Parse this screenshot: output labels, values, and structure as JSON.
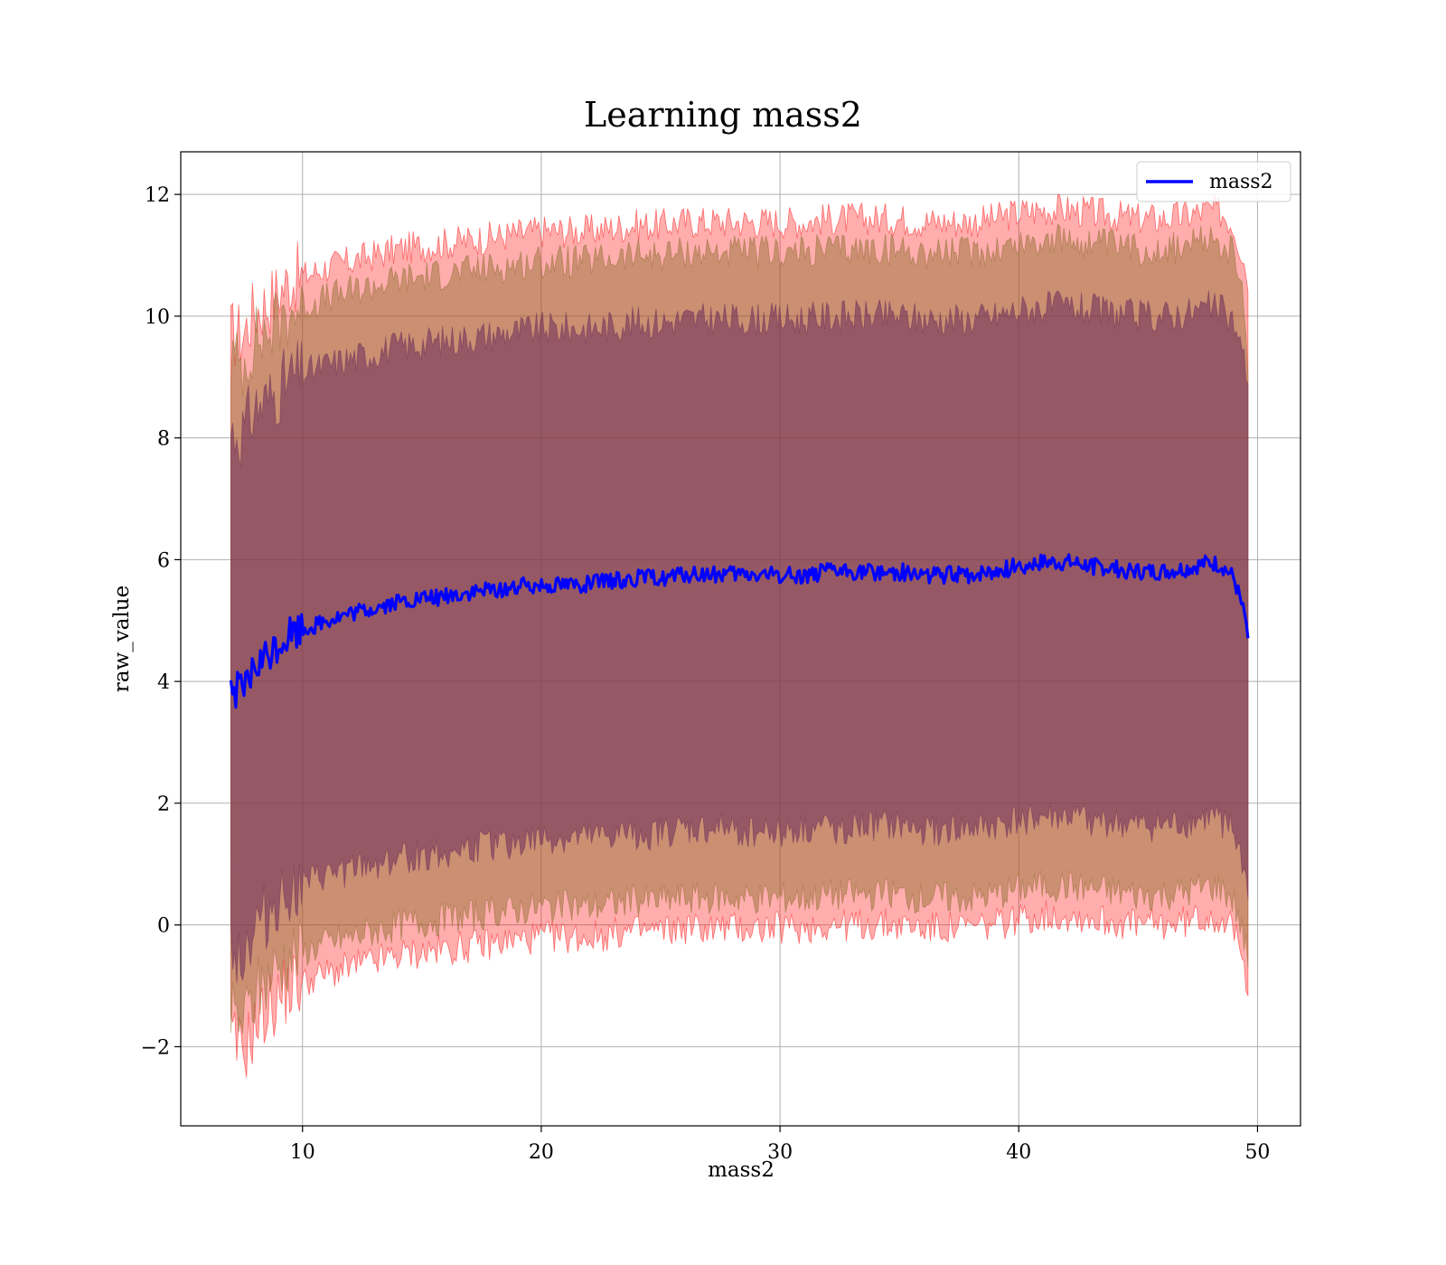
{
  "chart_data": {
    "type": "line",
    "title": "Learning mass2",
    "xlabel": "mass2",
    "ylabel": "raw_value",
    "xlim": [
      4.9,
      51.8
    ],
    "ylim": [
      -3.3,
      12.7
    ],
    "xticks": [
      10,
      20,
      30,
      40,
      50
    ],
    "yticks": [
      -2,
      0,
      2,
      4,
      6,
      8,
      10,
      12
    ],
    "xtick_labels": [
      "10",
      "20",
      "30",
      "40",
      "50"
    ],
    "ytick_labels": [
      "−2",
      "0",
      "2",
      "4",
      "6",
      "8",
      "10",
      "12"
    ],
    "grid": true,
    "legend": {
      "position": "upper-right",
      "entries": [
        "mass2"
      ]
    },
    "colors": {
      "line": "#0000ff",
      "outer_band": "#ff0000",
      "middle_band": "#8b6a2b",
      "inner_band": "#6a2c5a",
      "grid": "#b0b0b0"
    },
    "series": [
      {
        "name": "mass2",
        "x": [
          7.0,
          7.5,
          8.0,
          8.5,
          9.0,
          9.5,
          10.0,
          11.0,
          12.0,
          13.0,
          14.0,
          15.0,
          16.0,
          17.0,
          18.0,
          19.0,
          20.0,
          21.0,
          22.0,
          23.0,
          24.0,
          25.0,
          26.0,
          27.0,
          28.0,
          29.0,
          30.0,
          31.0,
          32.0,
          33.0,
          34.0,
          35.0,
          36.0,
          37.0,
          38.0,
          39.0,
          40.0,
          41.0,
          42.0,
          43.0,
          44.0,
          45.0,
          46.0,
          47.0,
          48.0,
          48.5,
          49.0,
          49.3,
          49.6
        ],
        "y": [
          3.9,
          3.8,
          4.2,
          4.4,
          4.6,
          4.8,
          4.85,
          5.0,
          5.1,
          5.2,
          5.3,
          5.35,
          5.4,
          5.45,
          5.5,
          5.55,
          5.6,
          5.6,
          5.6,
          5.65,
          5.7,
          5.7,
          5.75,
          5.75,
          5.75,
          5.75,
          5.75,
          5.75,
          5.8,
          5.8,
          5.8,
          5.8,
          5.75,
          5.75,
          5.75,
          5.8,
          5.9,
          5.95,
          5.95,
          5.9,
          5.85,
          5.8,
          5.8,
          5.85,
          5.95,
          5.9,
          5.7,
          5.3,
          4.85
        ]
      }
    ],
    "bands": [
      {
        "x": [
          7.0,
          7.5,
          8.0,
          8.5,
          9.0,
          9.5,
          10.0,
          11.0,
          12.0,
          13.0,
          14.0,
          15.0,
          16.0,
          17.0,
          18.0,
          19.0,
          20.0,
          21.0,
          22.0,
          23.0,
          24.0,
          25.0,
          26.0,
          27.0,
          28.0,
          29.0,
          30.0,
          31.0,
          32.0,
          33.0,
          34.0,
          35.0,
          36.0,
          37.0,
          38.0,
          39.0,
          40.0,
          41.0,
          42.0,
          43.0,
          44.0,
          45.0,
          46.0,
          47.0,
          48.0,
          48.5,
          49.0,
          49.3,
          49.6
        ],
        "lower": [
          -1.9,
          -2.1,
          -1.7,
          -1.4,
          -1.2,
          -1.0,
          -0.95,
          -0.8,
          -0.7,
          -0.6,
          -0.5,
          -0.45,
          -0.4,
          -0.35,
          -0.3,
          -0.25,
          -0.2,
          -0.2,
          -0.2,
          -0.15,
          -0.1,
          -0.1,
          -0.05,
          -0.05,
          -0.05,
          -0.05,
          -0.05,
          -0.05,
          0.0,
          0.0,
          0.0,
          0.0,
          -0.05,
          -0.05,
          -0.05,
          0.0,
          0.1,
          0.15,
          0.15,
          0.1,
          0.05,
          0.0,
          0.0,
          0.05,
          0.15,
          0.1,
          -0.1,
          -0.5,
          -0.95
        ],
        "upper": [
          9.7,
          9.7,
          10.1,
          10.2,
          10.4,
          10.6,
          10.65,
          10.8,
          10.9,
          11.0,
          11.1,
          11.15,
          11.2,
          11.25,
          11.3,
          11.35,
          11.4,
          11.4,
          11.4,
          11.45,
          11.5,
          11.5,
          11.55,
          11.55,
          11.55,
          11.55,
          11.55,
          11.55,
          11.6,
          11.6,
          11.6,
          11.6,
          11.55,
          11.55,
          11.55,
          11.6,
          11.7,
          11.75,
          11.75,
          11.7,
          11.65,
          11.6,
          11.6,
          11.65,
          11.75,
          11.7,
          11.5,
          11.1,
          10.65
        ]
      },
      {
        "x": [
          7.0,
          7.5,
          8.0,
          8.5,
          9.0,
          9.5,
          10.0,
          11.0,
          12.0,
          13.0,
          14.0,
          15.0,
          16.0,
          17.0,
          18.0,
          19.0,
          20.0,
          21.0,
          22.0,
          23.0,
          24.0,
          25.0,
          26.0,
          27.0,
          28.0,
          29.0,
          30.0,
          31.0,
          32.0,
          33.0,
          34.0,
          35.0,
          36.0,
          37.0,
          38.0,
          39.0,
          40.0,
          41.0,
          42.0,
          43.0,
          44.0,
          45.0,
          46.0,
          47.0,
          48.0,
          48.5,
          49.0,
          49.3,
          49.6
        ],
        "lower": [
          -1.5,
          -1.6,
          -1.2,
          -0.9,
          -0.7,
          -0.5,
          -0.45,
          -0.3,
          -0.2,
          -0.1,
          0.0,
          0.05,
          0.1,
          0.15,
          0.2,
          0.25,
          0.3,
          0.3,
          0.3,
          0.35,
          0.4,
          0.4,
          0.45,
          0.45,
          0.45,
          0.45,
          0.45,
          0.45,
          0.5,
          0.5,
          0.5,
          0.5,
          0.45,
          0.45,
          0.45,
          0.5,
          0.6,
          0.65,
          0.65,
          0.6,
          0.55,
          0.5,
          0.5,
          0.55,
          0.65,
          0.6,
          0.4,
          0.0,
          -0.5
        ],
        "upper": [
          9.3,
          9.2,
          9.6,
          9.7,
          9.9,
          10.1,
          10.15,
          10.3,
          10.4,
          10.5,
          10.6,
          10.65,
          10.7,
          10.75,
          10.8,
          10.85,
          10.9,
          10.9,
          10.9,
          10.95,
          11.0,
          11.0,
          11.05,
          11.05,
          11.05,
          11.05,
          11.05,
          11.05,
          11.1,
          11.1,
          11.1,
          11.1,
          11.05,
          11.05,
          11.05,
          11.1,
          11.2,
          11.25,
          11.25,
          11.2,
          11.15,
          11.1,
          11.1,
          11.15,
          11.25,
          11.2,
          11.0,
          10.6,
          9.2
        ]
      },
      {
        "x": [
          7.0,
          7.5,
          8.0,
          8.5,
          9.0,
          9.5,
          10.0,
          11.0,
          12.0,
          13.0,
          14.0,
          15.0,
          16.0,
          17.0,
          18.0,
          19.0,
          20.0,
          21.0,
          22.0,
          23.0,
          24.0,
          25.0,
          26.0,
          27.0,
          28.0,
          29.0,
          30.0,
          31.0,
          32.0,
          33.0,
          34.0,
          35.0,
          36.0,
          37.0,
          38.0,
          39.0,
          40.0,
          41.0,
          42.0,
          43.0,
          44.0,
          45.0,
          46.0,
          47.0,
          48.0,
          48.5,
          49.0,
          49.3,
          49.6
        ],
        "lower": [
          -0.3,
          -0.5,
          -0.1,
          0.2,
          0.4,
          0.6,
          0.65,
          0.8,
          0.9,
          1.0,
          1.1,
          1.15,
          1.2,
          1.25,
          1.3,
          1.35,
          1.4,
          1.4,
          1.4,
          1.45,
          1.5,
          1.5,
          1.55,
          1.55,
          1.55,
          1.55,
          1.55,
          1.55,
          1.6,
          1.6,
          1.6,
          1.6,
          1.55,
          1.55,
          1.55,
          1.6,
          1.7,
          1.75,
          1.75,
          1.7,
          1.65,
          1.6,
          1.6,
          1.65,
          1.75,
          1.7,
          1.5,
          1.1,
          0.6
        ],
        "upper": [
          8.1,
          8.1,
          8.5,
          8.6,
          8.8,
          9.0,
          9.05,
          9.2,
          9.3,
          9.4,
          9.5,
          9.55,
          9.6,
          9.65,
          9.7,
          9.75,
          9.8,
          9.8,
          9.8,
          9.85,
          9.9,
          9.9,
          9.95,
          9.95,
          9.95,
          9.95,
          9.95,
          9.95,
          10.0,
          10.0,
          10.0,
          10.0,
          9.95,
          9.95,
          9.95,
          10.0,
          10.1,
          10.15,
          10.15,
          10.1,
          10.05,
          10.0,
          10.0,
          10.05,
          10.15,
          10.1,
          9.9,
          9.5,
          9.0
        ]
      }
    ]
  }
}
